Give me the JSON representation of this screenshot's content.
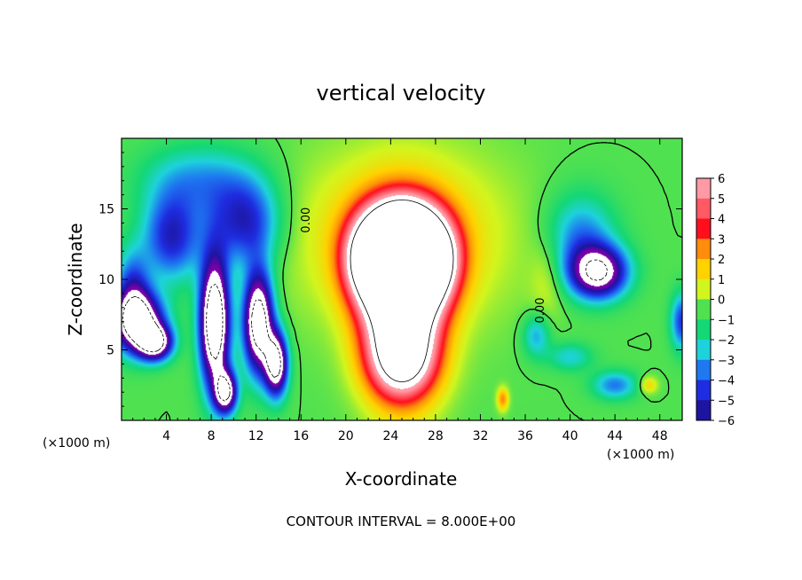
{
  "chart_data": {
    "type": "heatmap",
    "title": "vertical velocity",
    "xlabel": "X-coordinate",
    "ylabel": "Z-coordinate",
    "x_unit_label": "(×1000 m)",
    "z_unit_label": "(×1000 m)",
    "xlim": [
      0,
      50
    ],
    "ylim": [
      0,
      20
    ],
    "x_ticks": [
      4,
      8,
      12,
      16,
      20,
      24,
      28,
      32,
      36,
      40,
      44,
      48
    ],
    "y_ticks": [
      5,
      10,
      15
    ],
    "footer": "CONTOUR INTERVAL = 8.000E+00",
    "contour_labels": [
      {
        "text": "0.00",
        "x": 16.5,
        "y": 14.2
      },
      {
        "text": "0.00",
        "x": 37.4,
        "y": 7.8
      }
    ],
    "colorbar": {
      "labels": [
        "6",
        "5",
        "4",
        "3",
        "2",
        "1",
        "0",
        "−1",
        "−2",
        "−3",
        "−4",
        "−5",
        "−6"
      ],
      "colors": [
        "#ff9aa5",
        "#ff5a64",
        "#ff0f1e",
        "#ff8c0a",
        "#ffd200",
        "#d2f51e",
        "#50e150",
        "#14d775",
        "#1ed2dc",
        "#1e78f0",
        "#1e2de1",
        "#1e14a0",
        "#7800aa"
      ]
    },
    "features": [
      {
        "w": 12,
        "x": 25,
        "y": 8,
        "sx": 3.3,
        "sy": 5.5
      },
      {
        "w": 10,
        "x": 22.5,
        "y": 11.5,
        "sx": 2.5,
        "sy": 3
      },
      {
        "w": 10,
        "x": 27.5,
        "y": 11.5,
        "sx": 2.5,
        "sy": 3
      },
      {
        "w": 6,
        "x": 25,
        "y": 14,
        "sx": 2.5,
        "sy": 2
      },
      {
        "w": 4,
        "x": 25,
        "y": 4,
        "sx": 3,
        "sy": 2.5
      },
      {
        "w": 2.5,
        "x": 25,
        "y": 13,
        "sx": 9,
        "sy": 6
      },
      {
        "w": 3,
        "x": 34,
        "y": 1.5,
        "sx": 0.5,
        "sy": 0.8
      },
      {
        "w": 2,
        "x": 47,
        "y": 2.5,
        "sx": 0.8,
        "sy": 0.6
      },
      {
        "w": 1,
        "x": 38,
        "y": 10,
        "sx": 1.5,
        "sy": 3
      },
      {
        "w": -9,
        "x": 1.5,
        "y": 7,
        "sx": 2.2,
        "sy": 2
      },
      {
        "w": -8,
        "x": 3,
        "y": 5.5,
        "sx": 1.5,
        "sy": 1.2
      },
      {
        "w": -11,
        "x": 8.3,
        "y": 7,
        "sx": 1.3,
        "sy": 4.5
      },
      {
        "w": -8,
        "x": 9.3,
        "y": 2,
        "sx": 1,
        "sy": 1.5
      },
      {
        "w": -10,
        "x": 12.2,
        "y": 7,
        "sx": 1.3,
        "sy": 3.5
      },
      {
        "w": -9,
        "x": 13.8,
        "y": 4,
        "sx": 1,
        "sy": 2.2
      },
      {
        "w": -4.5,
        "x": 4.5,
        "y": 13,
        "sx": 2.5,
        "sy": 3
      },
      {
        "w": -4.5,
        "x": 11,
        "y": 14,
        "sx": 3,
        "sy": 3
      },
      {
        "w": -2.5,
        "x": 7,
        "y": 17,
        "sx": 5,
        "sy": 2.5
      },
      {
        "w": -4,
        "x": 1,
        "y": 9,
        "sx": 1.5,
        "sy": 3
      },
      {
        "w": -8,
        "x": 42.5,
        "y": 10.5,
        "sx": 2.5,
        "sy": 1.8
      },
      {
        "w": -3,
        "x": 41,
        "y": 13,
        "sx": 3,
        "sy": 3
      },
      {
        "w": -3,
        "x": 44,
        "y": 2.5,
        "sx": 2,
        "sy": 1
      },
      {
        "w": -2.5,
        "x": 37,
        "y": 6,
        "sx": 1.2,
        "sy": 1.5
      },
      {
        "w": -4,
        "x": 50,
        "y": 7,
        "sx": 1,
        "sy": 2
      },
      {
        "w": -2,
        "x": 40,
        "y": 4.5,
        "sx": 2,
        "sy": 1
      }
    ]
  }
}
